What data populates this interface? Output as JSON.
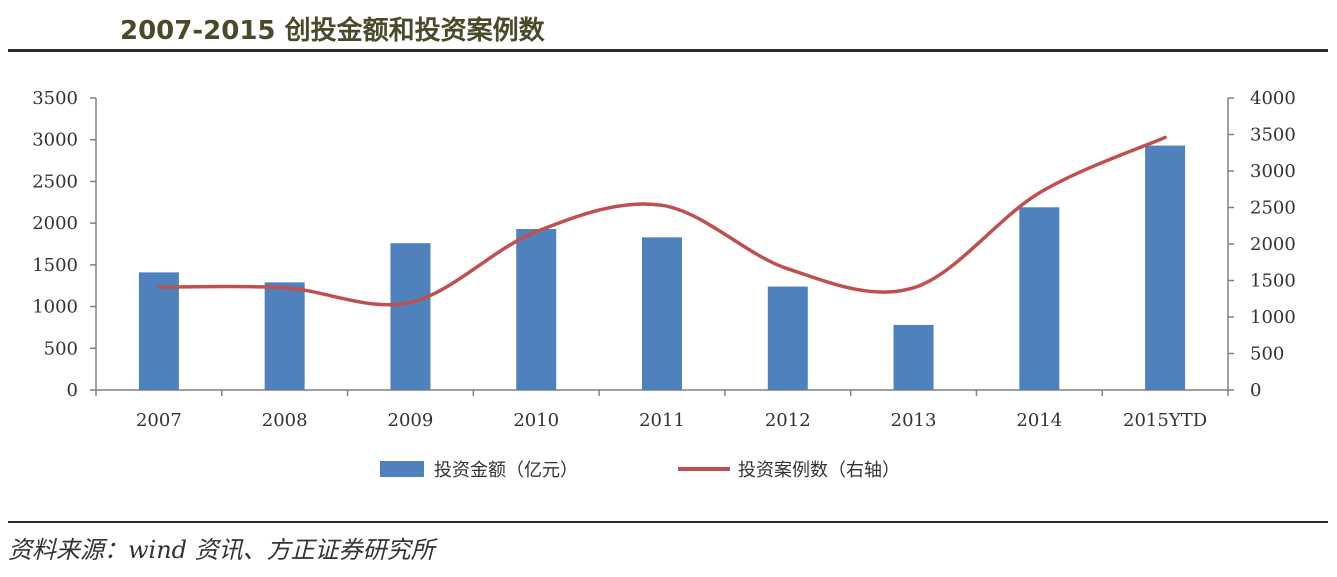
{
  "header": {
    "title": "2007-2015 创投金额和投资案例数"
  },
  "footer": {
    "source": "资料来源：wind 资讯、方正证券研究所"
  },
  "chart_data": {
    "type": "bar",
    "title": "2007-2015 创投金额和投资案例数",
    "categories": [
      "2007",
      "2008",
      "2009",
      "2010",
      "2011",
      "2012",
      "2013",
      "2014",
      "2015YTD"
    ],
    "series": [
      {
        "name": "投资金额（亿元）",
        "type": "bar",
        "axis": "left",
        "color": "#4f81bd",
        "values": [
          1410,
          1290,
          1760,
          1930,
          1830,
          1240,
          780,
          2190,
          2930
        ]
      },
      {
        "name": "投资案例数（右轴）",
        "type": "line",
        "axis": "right",
        "color": "#c0504d",
        "values": [
          1410,
          1400,
          1200,
          2170,
          2530,
          1660,
          1400,
          2700,
          3460
        ]
      }
    ],
    "y_left": {
      "min": 0,
      "max": 3500,
      "ticks": [
        "0",
        "500",
        "1000",
        "1500",
        "2000",
        "2500",
        "3000",
        "3500"
      ]
    },
    "y_right": {
      "min": 0,
      "max": 4000,
      "ticks": [
        "0",
        "500",
        "1000",
        "1500",
        "2000",
        "2500",
        "3000",
        "3500",
        "4000"
      ]
    },
    "legend_position": "bottom",
    "grid": false
  }
}
